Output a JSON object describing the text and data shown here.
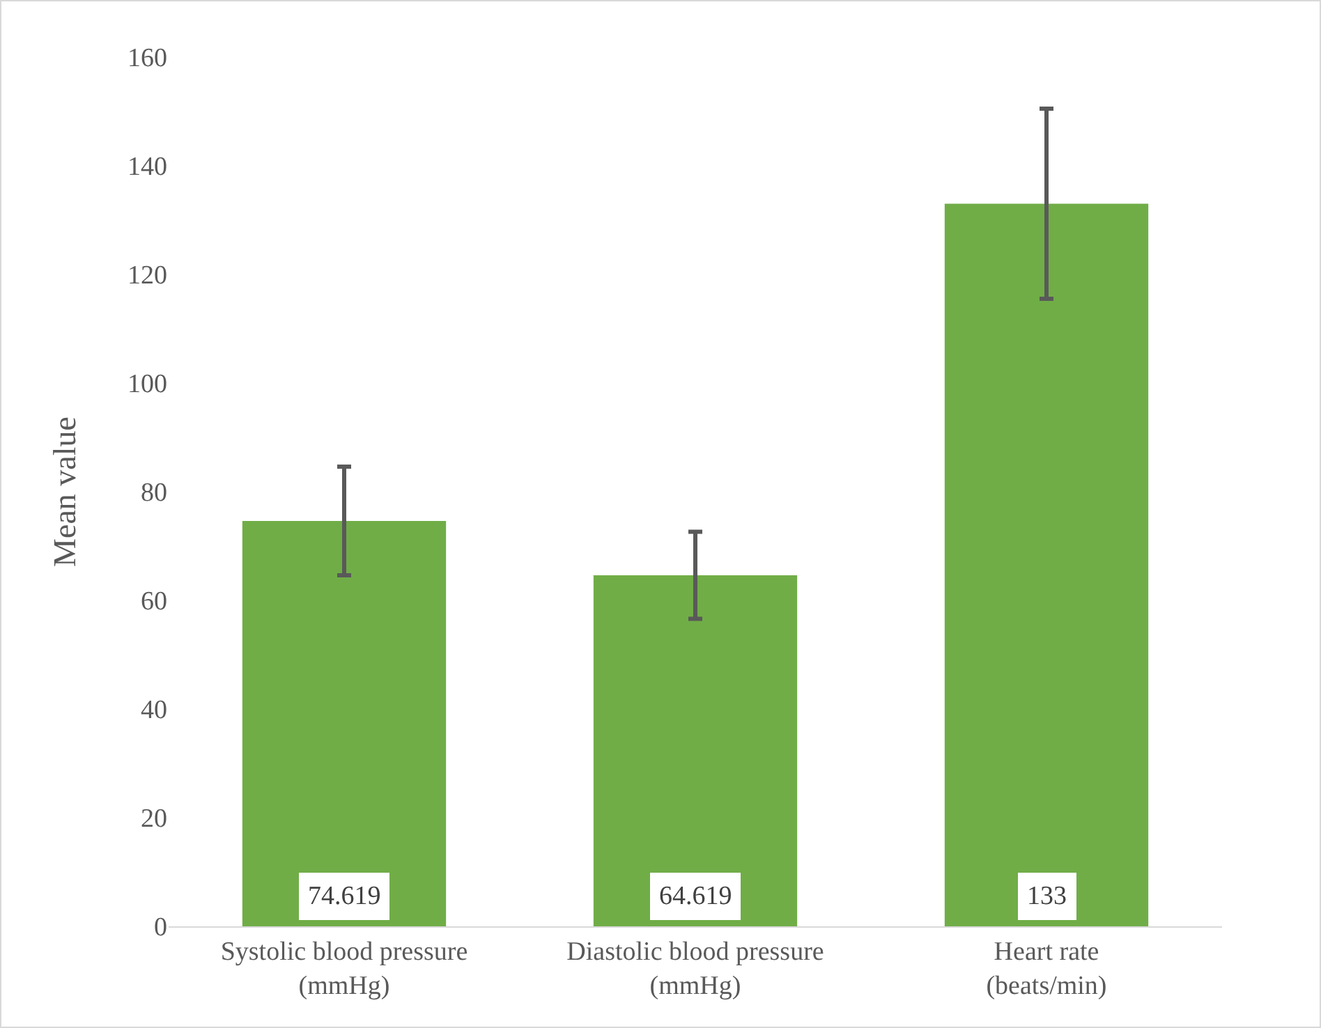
{
  "chart_data": {
    "type": "bar",
    "ylabel": "Mean value",
    "categories": [
      "Systolic blood pressure (mmHg)",
      "Diastolic blood pressure (mmHg)",
      "Heart rate (beats/min)"
    ],
    "values": [
      74.619,
      64.619,
      133
    ],
    "errors": [
      10,
      8,
      17.5
    ],
    "color": "#70ad47",
    "ylim": [
      0,
      160
    ],
    "yticks": [
      0,
      20,
      40,
      60,
      80,
      100,
      120,
      140,
      160
    ],
    "grid": false,
    "data_labels": true
  }
}
